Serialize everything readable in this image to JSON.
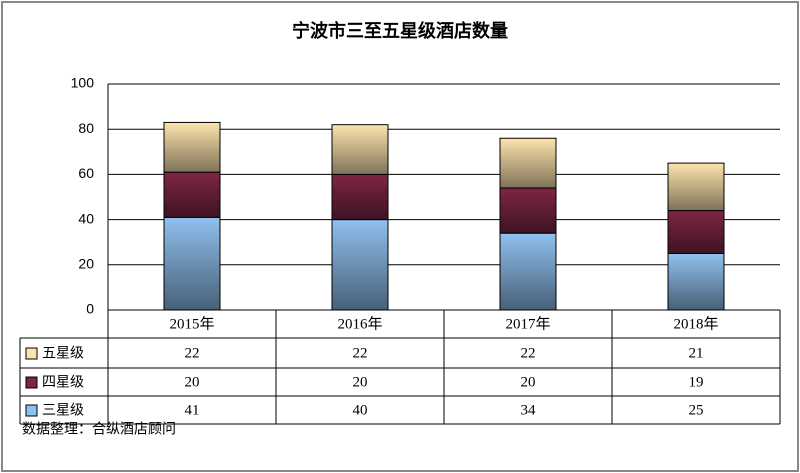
{
  "chart_data": {
    "type": "bar",
    "stacked": true,
    "title": "宁波市三至五星级酒店数量",
    "categories": [
      "2015年",
      "2016年",
      "2017年",
      "2018年"
    ],
    "series": [
      {
        "name": "三星级",
        "color": "#8fc0ee",
        "values": [
          41,
          40,
          34,
          25
        ]
      },
      {
        "name": "四星级",
        "color": "#7d2545",
        "values": [
          20,
          20,
          20,
          19
        ]
      },
      {
        "name": "五星级",
        "color": "#fde4ae",
        "values": [
          22,
          22,
          22,
          21
        ]
      }
    ],
    "ylim": [
      0,
      100
    ],
    "yticks": [
      0,
      20,
      40,
      60,
      80,
      100
    ],
    "grid": true,
    "note": "数据整理：合纵酒店顾问"
  }
}
